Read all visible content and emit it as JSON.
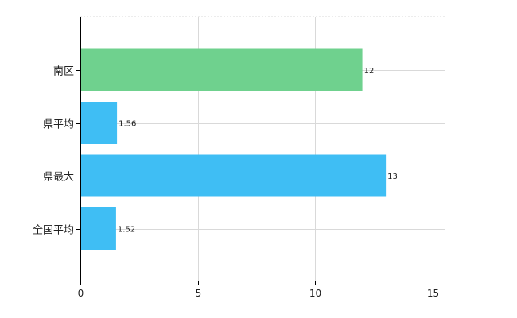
{
  "chart_data": {
    "type": "bar",
    "orientation": "horizontal",
    "categories": [
      "南区",
      "県平均",
      "県最大",
      "全国平均"
    ],
    "values": [
      12,
      1.56,
      13,
      1.52
    ],
    "data_labels": [
      "12",
      "1.56",
      "13",
      "1.52"
    ],
    "bar_colors": [
      "#6fd18e",
      "#3fbef4",
      "#3fbef4",
      "#3fbef4"
    ],
    "xlim": [
      0,
      15.5
    ],
    "xticks": [
      0,
      5,
      10,
      15
    ],
    "grid": true,
    "title": "",
    "xlabel": "",
    "ylabel": ""
  }
}
